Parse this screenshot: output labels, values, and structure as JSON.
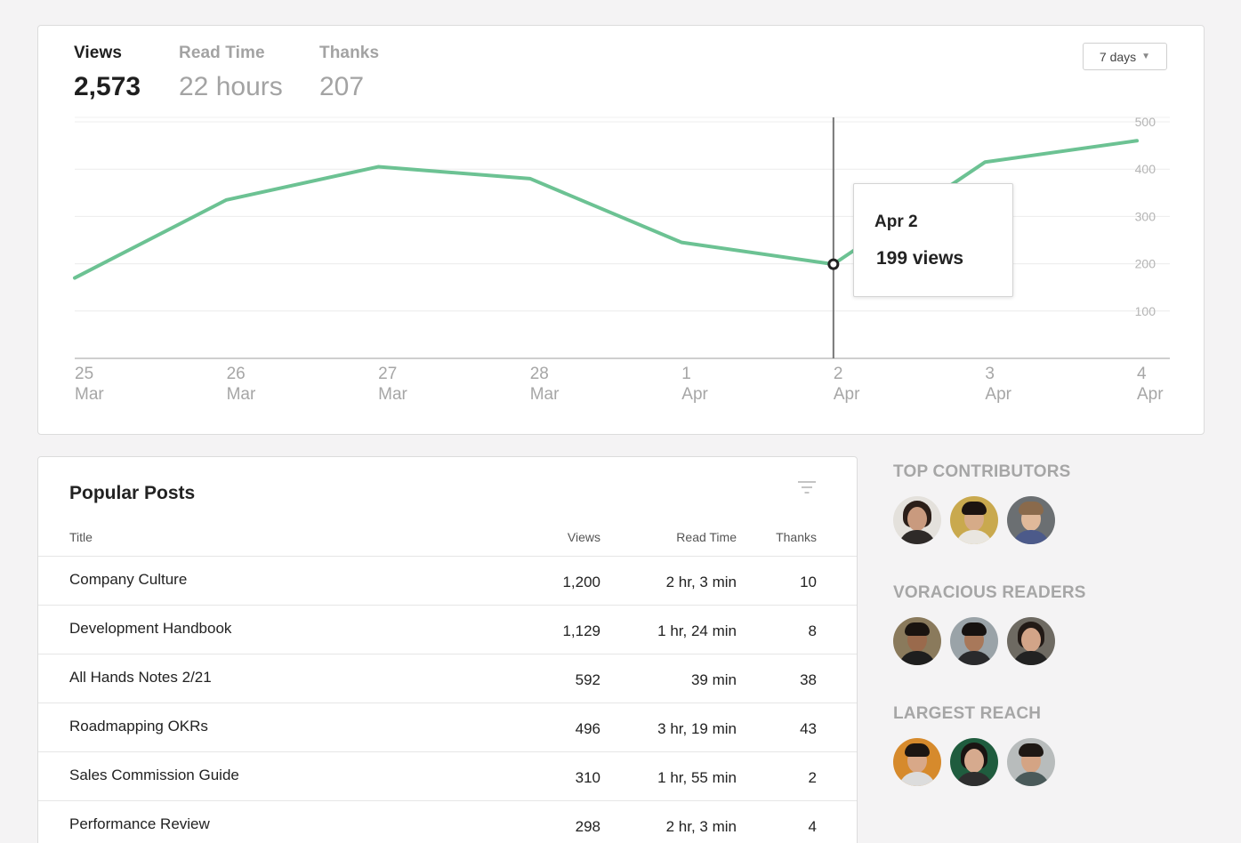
{
  "metrics": {
    "views": {
      "label": "Views",
      "value": "2,573"
    },
    "read_time": {
      "label": "Read Time",
      "value": "22 hours"
    },
    "thanks": {
      "label": "Thanks",
      "value": "207"
    }
  },
  "range_select": {
    "value": "7 days"
  },
  "tooltip": {
    "date": "Apr 2",
    "value": "199 views"
  },
  "chart_data": {
    "type": "line",
    "x": [
      "25 Mar",
      "26 Mar",
      "27 Mar",
      "28 Mar",
      "1 Apr",
      "2 Apr",
      "3 Apr",
      "4 Apr"
    ],
    "x_ticks": [
      {
        "day": "25",
        "month": "Mar"
      },
      {
        "day": "26",
        "month": "Mar"
      },
      {
        "day": "27",
        "month": "Mar"
      },
      {
        "day": "28",
        "month": "Mar"
      },
      {
        "day": "1",
        "month": "Apr"
      },
      {
        "day": "2",
        "month": "Apr"
      },
      {
        "day": "3",
        "month": "Apr"
      },
      {
        "day": "4",
        "month": "Apr"
      }
    ],
    "series": [
      {
        "values": [
          170,
          335,
          405,
          380,
          245,
          199,
          415,
          460
        ]
      }
    ],
    "y_ticks": [
      100,
      200,
      300,
      400,
      500
    ],
    "ylim": [
      0,
      500
    ],
    "grid": true,
    "highlight_index": 5,
    "line_color": "#6cc293"
  },
  "popular_posts": {
    "title": "Popular Posts",
    "columns": {
      "title": "Title",
      "views": "Views",
      "read_time": "Read Time",
      "thanks": "Thanks"
    },
    "rows": [
      {
        "title": "Company Culture",
        "views": "1,200",
        "read_time": "2 hr, 3 min",
        "thanks": "10"
      },
      {
        "title": "Development Handbook",
        "views": "1,129",
        "read_time": "1 hr, 24 min",
        "thanks": "8"
      },
      {
        "title": "All Hands Notes 2/21",
        "views": "592",
        "read_time": "39 min",
        "thanks": "38"
      },
      {
        "title": "Roadmapping OKRs",
        "views": "496",
        "read_time": "3 hr, 19 min",
        "thanks": "43"
      },
      {
        "title": "Sales Commission Guide",
        "views": "310",
        "read_time": "1 hr, 55 min",
        "thanks": "2"
      },
      {
        "title": "Performance Review",
        "views": "298",
        "read_time": "2 hr, 3 min",
        "thanks": "4"
      }
    ]
  },
  "sidebar": {
    "top_contributors": {
      "heading": "TOP CONTRIBUTORS"
    },
    "voracious_readers": {
      "heading": "VORACIOUS READERS"
    },
    "largest_reach": {
      "heading": "LARGEST REACH"
    }
  }
}
